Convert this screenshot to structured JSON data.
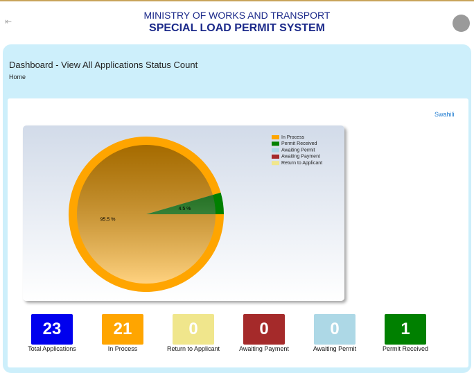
{
  "header": {
    "title": "MINISTRY OF WORKS AND TRANSPORT",
    "subtitle": "SPECIAL LOAD PERMIT SYSTEM"
  },
  "page": {
    "title": "Dashboard - View All Applications Status Count",
    "breadcrumb": "Home",
    "language": "Swahili"
  },
  "chart_data": {
    "type": "pie",
    "categories": [
      "In Process",
      "Permit Received",
      "Awaiting Permit",
      "Awaiting Payment",
      "Return to Applicant"
    ],
    "values": [
      95.5,
      4.5,
      0,
      0,
      0
    ],
    "value_labels": [
      "95.5 %",
      "4.5 %",
      null,
      null,
      null
    ],
    "colors": [
      "#ffa500",
      "#008000",
      "#add8e6",
      "#a52a2a",
      "#f0e68c"
    ],
    "legend": "top-right"
  },
  "cards": [
    {
      "count": 23,
      "label": "Total Applications",
      "color": "#0000ee"
    },
    {
      "count": 21,
      "label": "In Process",
      "color": "#ffa500"
    },
    {
      "count": 0,
      "label": "Return to Applicant",
      "color": "#f0e68c"
    },
    {
      "count": 0,
      "label": "Awaiting Payment",
      "color": "#a52a2a"
    },
    {
      "count": 0,
      "label": "Awaiting Permit",
      "color": "#add8e6"
    },
    {
      "count": 1,
      "label": "Permit Received",
      "color": "#008000"
    }
  ]
}
